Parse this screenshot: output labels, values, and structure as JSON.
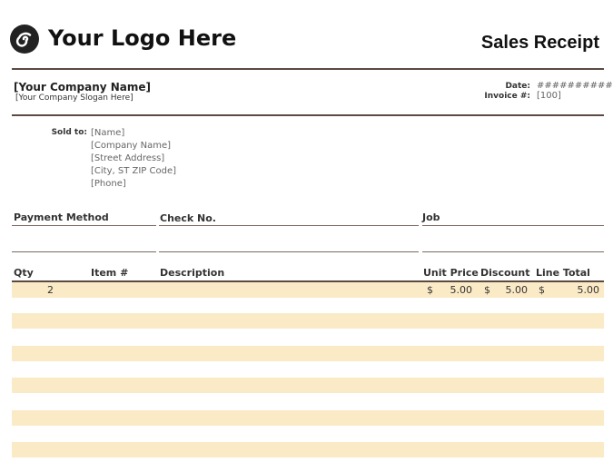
{
  "header": {
    "logo_text": "Your Logo Here",
    "title": "Sales Receipt",
    "company_name": "[Your Company Name]",
    "slogan": "[Your Company Slogan Here]",
    "date_label": "Date:",
    "date_value": "###########",
    "invoice_label": "Invoice #:",
    "invoice_value": "[100]"
  },
  "sold_to": {
    "label": "Sold to:",
    "lines": [
      "[Name]",
      "[Company Name]",
      "[Street Address]",
      "[City, ST  ZIP Code]",
      "[Phone]"
    ]
  },
  "payment": {
    "headers": [
      "Payment Method",
      "Check No.",
      "Job"
    ]
  },
  "table": {
    "columns": [
      "Qty",
      "Item #",
      "Description",
      "Unit Price",
      "Discount",
      "Line Total"
    ],
    "rows": [
      {
        "qty": "2",
        "unit_price": {
          "symbol": "$",
          "amount": "5.00"
        },
        "discount": {
          "symbol": "$",
          "amount": "5.00"
        },
        "line_total": {
          "symbol": "$",
          "amount": "5.00"
        }
      }
    ]
  }
}
